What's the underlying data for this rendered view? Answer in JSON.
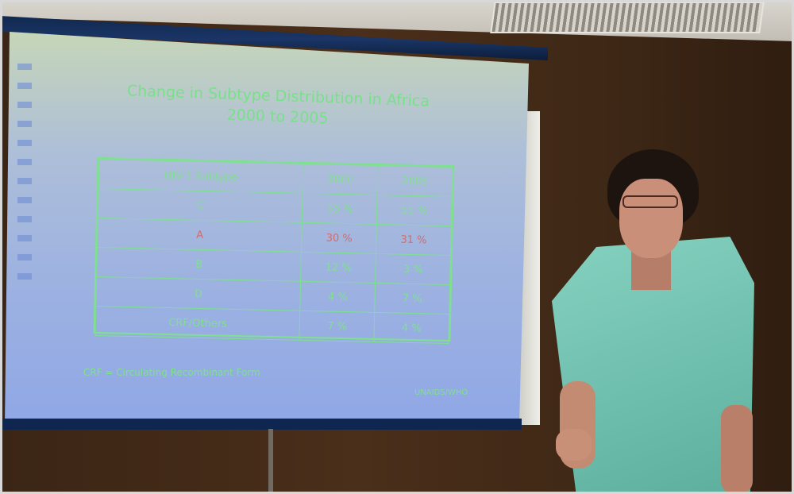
{
  "slide": {
    "title_line1": "Change in Subtype Distribution in Africa",
    "title_line2": "2000 to 2005",
    "table": {
      "headers": [
        "HIV-1 Subtype",
        "2000",
        "2005"
      ],
      "rows": [
        [
          "C",
          "55 %",
          "55 %"
        ],
        [
          "A",
          "30 %",
          "31 %"
        ],
        [
          "B",
          "12 %",
          "3 %"
        ],
        [
          "D",
          "4 %",
          "7 %"
        ],
        [
          "CRF/Others",
          "7 %",
          "4 %"
        ]
      ]
    },
    "footnote": "CRF = Circulating Recombinant Form",
    "credit": "UNAIDS/WHO"
  }
}
